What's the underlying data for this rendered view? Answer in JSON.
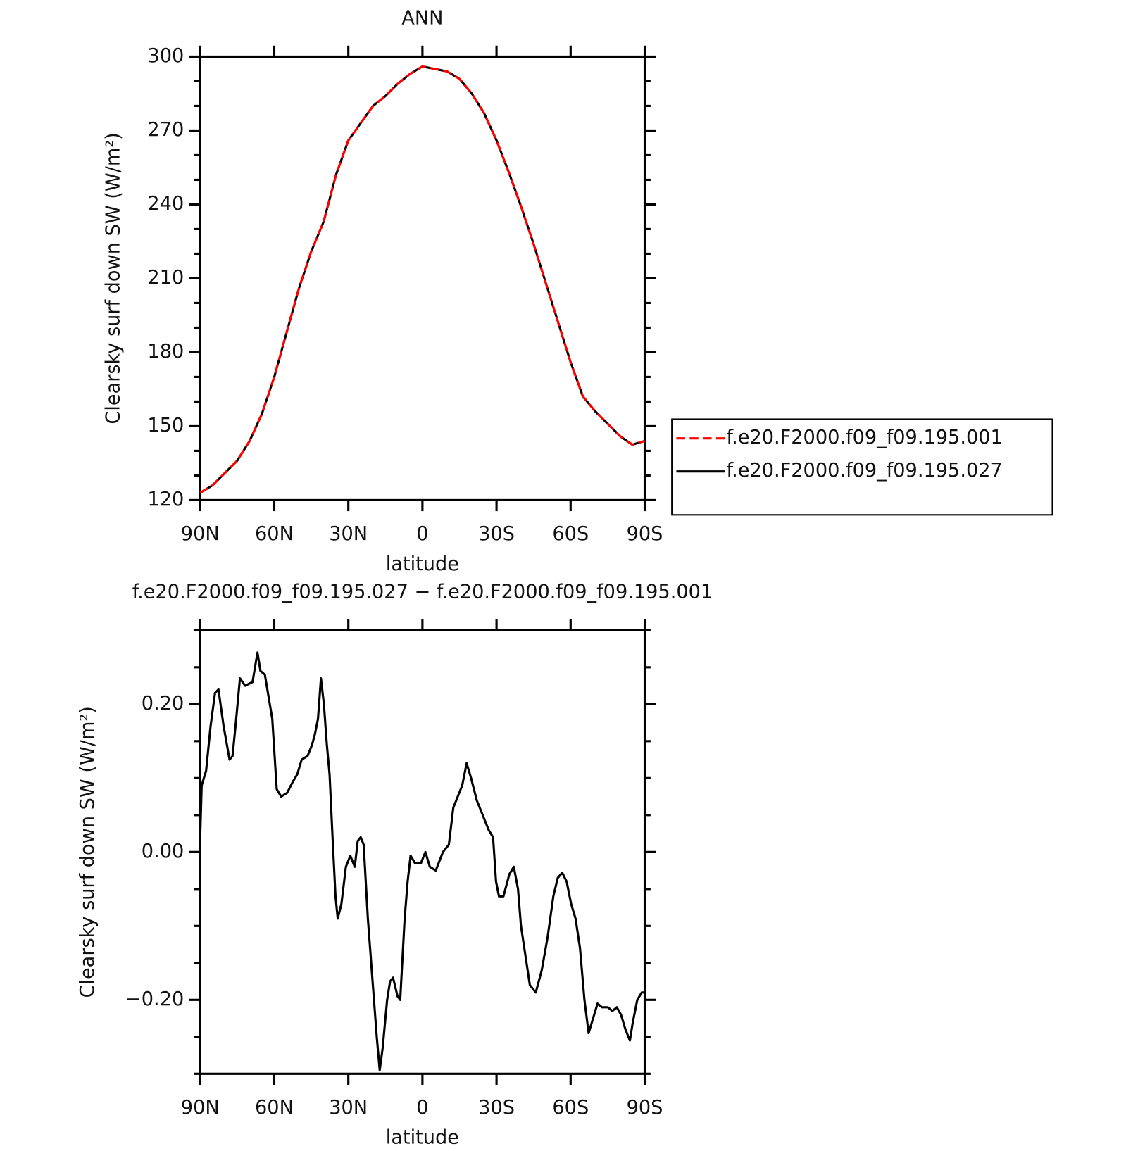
{
  "chart_data": [
    {
      "type": "line",
      "title": "ANN",
      "ylabel": "Clearsky surf down SW (W/m²)",
      "xlabel": "latitude",
      "x": [
        90,
        85,
        80,
        75,
        70,
        65,
        60,
        55,
        50,
        45,
        40,
        35,
        30,
        25,
        20,
        15,
        10,
        5,
        0,
        -5,
        -10,
        -15,
        -20,
        -25,
        -30,
        -35,
        -40,
        -45,
        -50,
        -55,
        -60,
        -65,
        -70,
        -75,
        -80,
        -85,
        -90
      ],
      "series": [
        {
          "name": "f.e20.F2000.f09_f09.195.001",
          "color": "#ff0000",
          "line_style": "dashed",
          "values": [
            123,
            126,
            131,
            136,
            144,
            155,
            170,
            188,
            206,
            221,
            233,
            252,
            266,
            273,
            280,
            284,
            289,
            293,
            296,
            295,
            294,
            291,
            285,
            277,
            266,
            253,
            239,
            224,
            208,
            192,
            176,
            162,
            156,
            151,
            146,
            142.5,
            144
          ]
        },
        {
          "name": "f.e20.F2000.f09_f09.195.027",
          "color": "#000000",
          "line_style": "solid",
          "values": [
            123,
            126,
            131,
            136,
            144,
            155,
            170,
            188,
            206,
            221,
            233,
            252,
            266,
            273,
            280,
            284,
            289,
            293,
            296,
            295,
            294,
            291,
            285,
            277,
            266,
            253,
            239,
            224,
            208,
            192,
            176,
            162,
            156,
            151,
            146,
            142.5,
            144
          ]
        }
      ],
      "xlim": [
        90,
        -90
      ],
      "xticks": [
        {
          "value": 90,
          "label": "90N"
        },
        {
          "value": 60,
          "label": "60N"
        },
        {
          "value": 30,
          "label": "30N"
        },
        0,
        {
          "value": -30,
          "label": "30S"
        },
        {
          "value": -60,
          "label": "60S"
        },
        {
          "value": -90,
          "label": "90S"
        }
      ],
      "ylim": [
        120,
        300
      ],
      "yticks": [
        120,
        150,
        180,
        210,
        240,
        270,
        300
      ]
    },
    {
      "type": "line",
      "title": "f.e20.F2000.f09_f09.195.027 − f.e20.F2000.f09_f09.195.001",
      "ylabel": "Clearsky surf down SW (W/m²)",
      "xlabel": "latitude",
      "x": [
        90,
        89.4,
        87.6,
        85.8,
        84.0,
        82.6,
        80.5,
        78.1,
        76.9,
        75.7,
        73.9,
        71.8,
        68.8,
        66.8,
        65.6,
        63.8,
        60.8,
        59.0,
        57.2,
        54.8,
        52.5,
        50.7,
        48.9,
        46.5,
        44.7,
        43.5,
        42.3,
        41.1,
        39.9,
        38.7,
        37.6,
        36.4,
        35.2,
        34.3,
        32.8,
        31.0,
        29.2,
        27.4,
        26.2,
        25.0,
        23.8,
        22.1,
        20.3,
        18.5,
        17.3,
        16.1,
        14.3,
        13.1,
        11.9,
        10.1,
        9.0,
        7.2,
        6.0,
        4.8,
        3.0,
        0.6,
        -1.2,
        -3.0,
        -5.4,
        -8.3,
        -10.7,
        -12.5,
        -14.9,
        -16.1,
        -17.9,
        -19.7,
        -22.0,
        -24.4,
        -26.8,
        -28.6,
        -29.8,
        -31.0,
        -32.8,
        -35.2,
        -37.0,
        -38.7,
        -39.9,
        -41.7,
        -43.5,
        -45.9,
        -48.3,
        -50.7,
        -53.0,
        -54.8,
        -56.6,
        -58.4,
        -60.2,
        -62.0,
        -63.8,
        -65.6,
        -67.3,
        -69.1,
        -70.9,
        -72.7,
        -75.1,
        -76.9,
        -78.7,
        -80.4,
        -82.2,
        -84.0,
        -85.2,
        -87.0,
        -88.8,
        -90
      ],
      "values": [
        0.02,
        0.09,
        0.11,
        0.17,
        0.215,
        0.22,
        0.17,
        0.125,
        0.13,
        0.17,
        0.235,
        0.225,
        0.23,
        0.27,
        0.245,
        0.24,
        0.18,
        0.085,
        0.075,
        0.08,
        0.095,
        0.105,
        0.125,
        0.13,
        0.145,
        0.16,
        0.18,
        0.235,
        0.2,
        0.145,
        0.105,
        0.02,
        -0.06,
        -0.09,
        -0.07,
        -0.02,
        -0.005,
        -0.02,
        0.015,
        0.02,
        0.01,
        -0.09,
        -0.17,
        -0.25,
        -0.295,
        -0.265,
        -0.2,
        -0.175,
        -0.17,
        -0.195,
        -0.2,
        -0.09,
        -0.04,
        -0.005,
        -0.015,
        -0.015,
        0.0,
        -0.02,
        -0.025,
        0.0,
        0.01,
        0.06,
        0.08,
        0.09,
        0.12,
        0.1,
        0.07,
        0.05,
        0.03,
        0.02,
        -0.04,
        -0.06,
        -0.06,
        -0.03,
        -0.02,
        -0.05,
        -0.1,
        -0.14,
        -0.18,
        -0.19,
        -0.16,
        -0.115,
        -0.06,
        -0.035,
        -0.028,
        -0.04,
        -0.07,
        -0.09,
        -0.13,
        -0.2,
        -0.245,
        -0.225,
        -0.205,
        -0.21,
        -0.21,
        -0.215,
        -0.21,
        -0.22,
        -0.24,
        -0.255,
        -0.23,
        -0.2,
        -0.19,
        -0.19
      ],
      "color": "#000000",
      "xlim": [
        90,
        -90
      ],
      "xticks": [
        {
          "value": 90,
          "label": "90N"
        },
        {
          "value": 60,
          "label": "60N"
        },
        {
          "value": 30,
          "label": "30N"
        },
        0,
        {
          "value": -30,
          "label": "30S"
        },
        {
          "value": -60,
          "label": "60S"
        },
        {
          "value": -90,
          "label": "90S"
        }
      ],
      "ylim": [
        -0.3,
        0.3
      ],
      "yticks": [
        {
          "value": -0.2,
          "label": "−0.20"
        },
        {
          "value": 0,
          "label": "0.00"
        },
        {
          "value": 0.2,
          "label": "0.20"
        }
      ]
    }
  ]
}
